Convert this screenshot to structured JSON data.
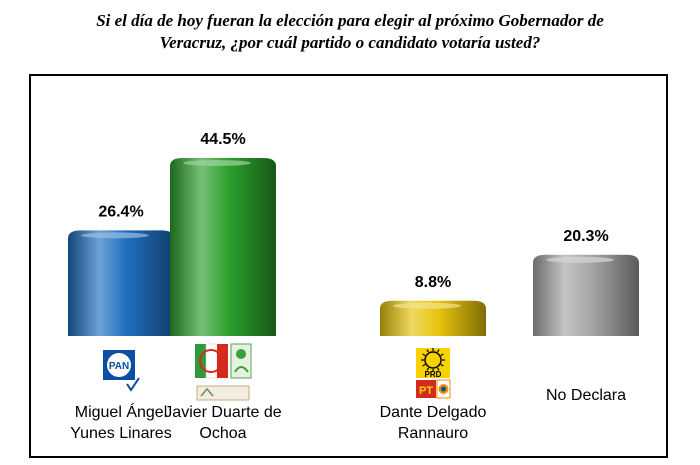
{
  "title_lines": [
    "Si el día de hoy fueran la elección para elegir al próximo Gobernador de",
    "Veracruz, ¿por cuál partido o candidato votaría usted?"
  ],
  "chart_data": {
    "type": "bar",
    "title": "Si el día de hoy fueran la elección para elegir al próximo Gobernador de Veracruz, ¿por cuál partido o candidato votaría usted?",
    "categories": [
      "Miguel Ángel Yunes Linares",
      "Javier Duarte de Ochoa",
      "Dante Delgado Rannauro",
      "No Declara"
    ],
    "values": [
      26.4,
      44.5,
      8.8,
      20.3
    ],
    "data_labels": [
      "26.4%",
      "44.5%",
      "8.8%",
      "20.3%"
    ],
    "category_label_lines": [
      [
        "Miguel Ángel",
        "Yunes Linares"
      ],
      [
        "Javier Duarte de",
        "Ochoa"
      ],
      [
        "Dante Delgado",
        "Rannauro"
      ],
      [
        "No Declara"
      ]
    ],
    "logos": [
      "pan-logo",
      "pri-pvem-coalition-logo",
      "prd-pt-convergencia-logo",
      ""
    ],
    "colors": [
      "#1f6fc1",
      "#2ca02c",
      "#e8c40c",
      "#a6a6a6"
    ],
    "xlabel": "",
    "ylabel": "",
    "ylim": [
      0,
      50
    ],
    "grid": false,
    "legend": "none"
  }
}
